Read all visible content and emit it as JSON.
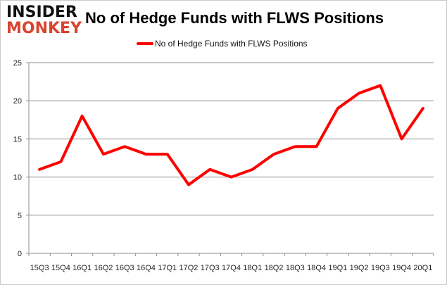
{
  "logo": {
    "line1": "INSIDER",
    "line2": "MONKEY"
  },
  "chart_data": {
    "type": "line",
    "title": "No of Hedge Funds with FLWS Positions",
    "categories": [
      "15Q3",
      "15Q4",
      "16Q1",
      "16Q2",
      "16Q3",
      "16Q4",
      "17Q1",
      "17Q2",
      "17Q3",
      "17Q4",
      "18Q1",
      "18Q2",
      "18Q3",
      "18Q4",
      "19Q1",
      "19Q2",
      "19Q3",
      "19Q4",
      "20Q1"
    ],
    "series": [
      {
        "name": "No of Hedge Funds with FLWS Positions",
        "color": "#ff0000",
        "values": [
          11,
          12,
          18,
          13,
          14,
          13,
          13,
          9,
          11,
          10,
          11,
          13,
          14,
          14,
          19,
          21,
          22,
          15,
          19
        ]
      }
    ],
    "ylim": [
      0,
      25
    ],
    "yticks": [
      0,
      5,
      10,
      15,
      20,
      25
    ],
    "grid": true,
    "legend": "top-center",
    "xlabel": "",
    "ylabel": ""
  }
}
